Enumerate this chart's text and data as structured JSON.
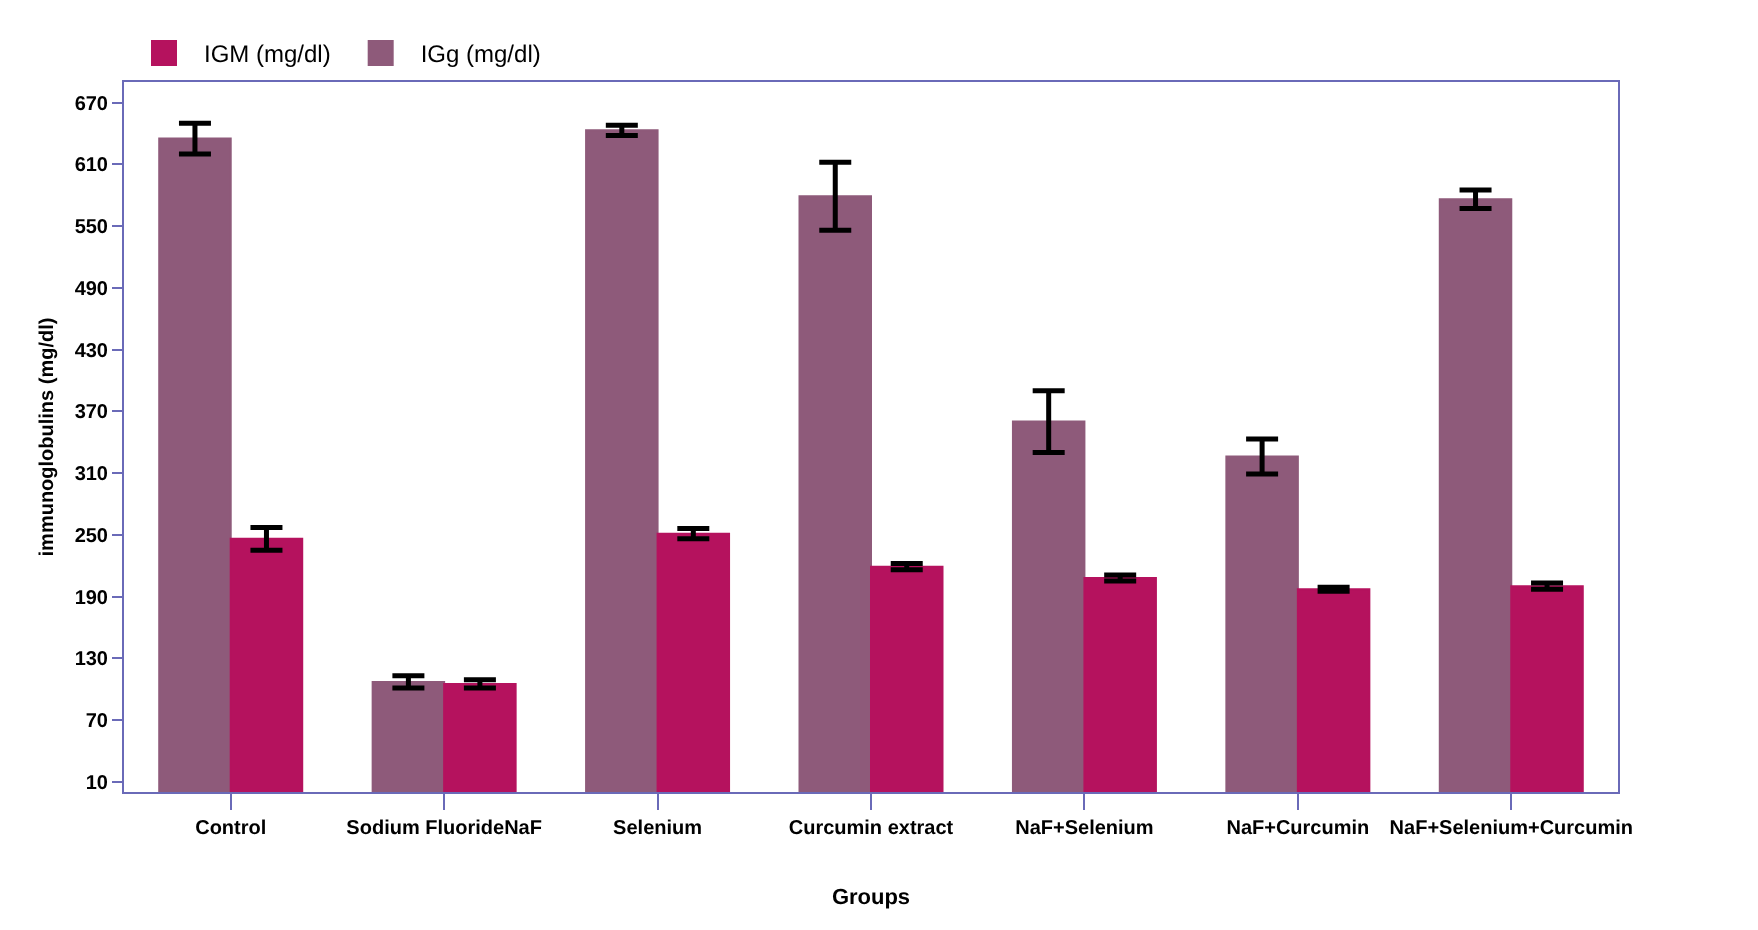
{
  "chart_data": {
    "type": "bar",
    "xlabel": "Groups",
    "ylabel": "immunoglobulins (mg/dl)",
    "categories": [
      "Control",
      "Sodium FluorideNaF",
      "Selenium",
      "Curcumin extract",
      "NaF+Selenium",
      "NaF+Curcumin",
      "NaF+Selenium+Curcumin"
    ],
    "series": [
      {
        "name": "IGM (mg/dl)",
        "color": "#b5125e",
        "values": [
          246,
          105,
          251,
          219,
          208,
          197,
          200
        ],
        "errors": [
          11,
          4,
          5,
          3,
          3,
          2,
          3
        ]
      },
      {
        "name": "IGg (mg/dl)",
        "color": "#8e5a7a",
        "values": [
          635,
          107,
          643,
          579,
          360,
          326,
          576
        ],
        "errors": [
          15,
          6,
          5,
          33,
          30,
          17,
          9
        ]
      }
    ],
    "ylim": [
      0,
      690
    ],
    "yticks": [
      10,
      70,
      130,
      190,
      250,
      310,
      370,
      430,
      490,
      550,
      610,
      670
    ],
    "legend": "top left"
  }
}
